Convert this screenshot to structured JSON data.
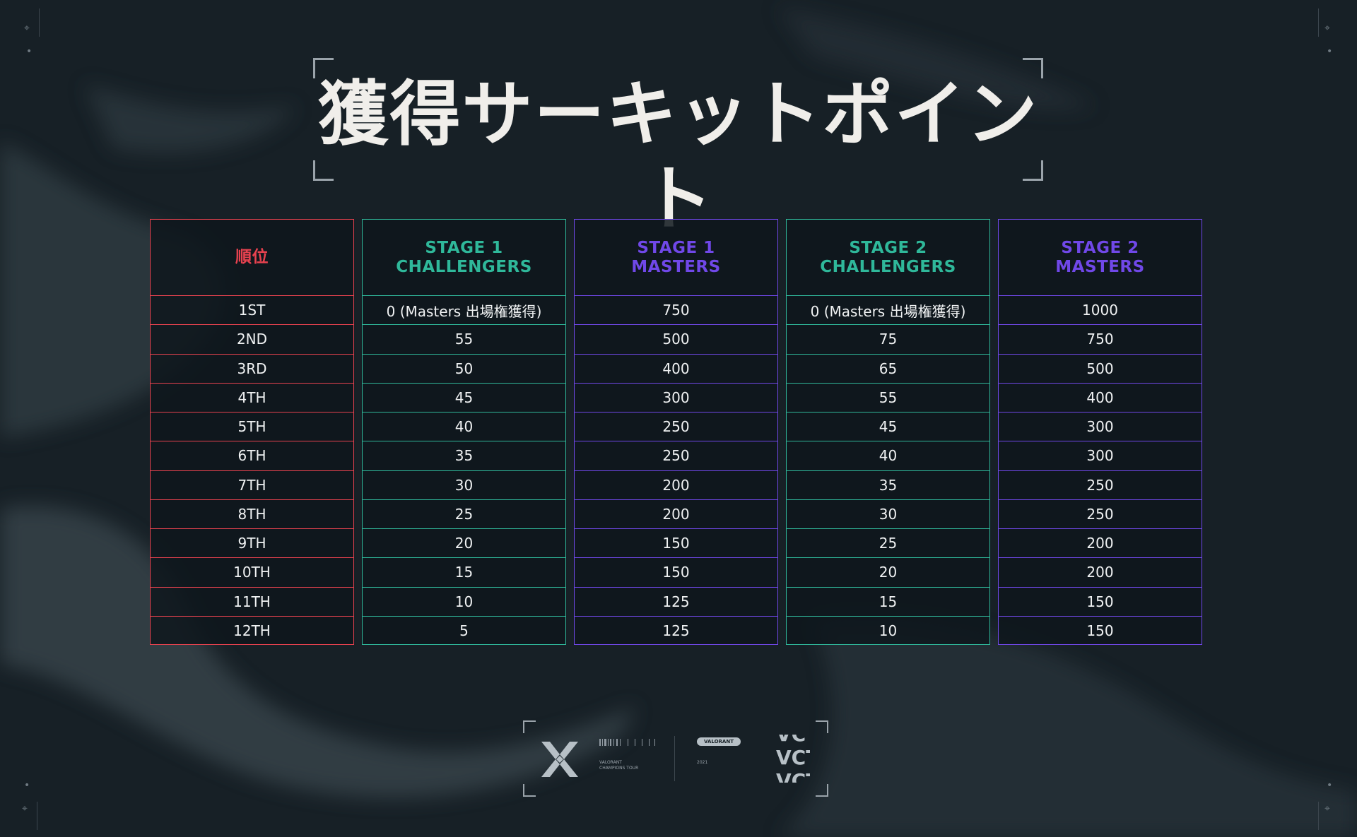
{
  "title": "獲得サーキットポイント",
  "colors": {
    "rank": "#e8424f",
    "challengers": "#2fb89a",
    "masters": "#7048e8",
    "background": "#172026"
  },
  "table": {
    "columns": [
      {
        "key": "rank",
        "color_key": "rank",
        "header": [
          "順位"
        ],
        "cells": [
          "1ST",
          "2ND",
          "3RD",
          "4TH",
          "5TH",
          "6TH",
          "7TH",
          "8TH",
          "9TH",
          "10TH",
          "11TH",
          "12TH"
        ]
      },
      {
        "key": "s1c",
        "color_key": "challengers",
        "header": [
          "STAGE 1",
          "CHALLENGERS"
        ],
        "cells": [
          "0 (Masters 出場権獲得)",
          "55",
          "50",
          "45",
          "40",
          "35",
          "30",
          "25",
          "20",
          "15",
          "10",
          "5"
        ]
      },
      {
        "key": "s1m",
        "color_key": "masters",
        "header": [
          "STAGE 1",
          "MASTERS"
        ],
        "cells": [
          "750",
          "500",
          "400",
          "300",
          "250",
          "250",
          "200",
          "200",
          "150",
          "150",
          "125",
          "125"
        ]
      },
      {
        "key": "s2c",
        "color_key": "challengers",
        "header": [
          "STAGE 2",
          "CHALLENGERS"
        ],
        "cells": [
          "0 (Masters 出場権獲得)",
          "75",
          "65",
          "55",
          "45",
          "40",
          "35",
          "30",
          "25",
          "20",
          "15",
          "10"
        ]
      },
      {
        "key": "s2m",
        "color_key": "masters",
        "header": [
          "STAGE 2",
          "MASTERS"
        ],
        "cells": [
          "1000",
          "750",
          "500",
          "400",
          "300",
          "300",
          "250",
          "250",
          "200",
          "200",
          "150",
          "150"
        ]
      }
    ]
  },
  "logo": {
    "brand_line1": "VALORANT",
    "brand_line2": "CHAMPIONS TOUR",
    "badge": "VALORANT",
    "year": "2021",
    "wordmark": "VCT",
    "icon": "vct-emblem-icon"
  }
}
